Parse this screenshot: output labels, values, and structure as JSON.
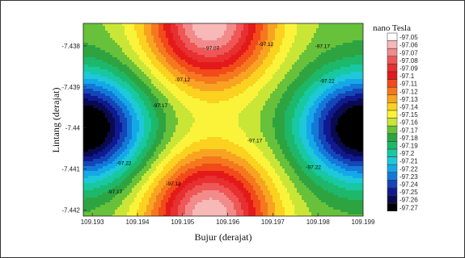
{
  "chart_data": {
    "type": "heatmap",
    "subtype": "filled-contour",
    "title": "",
    "xlabel": "Bujur (derajat)",
    "ylabel": "Lintang (derajat)",
    "xlim": [
      109.1928,
      109.199
    ],
    "ylim": [
      -7.44215,
      -7.43745
    ],
    "x_ticks": [
      "109.193",
      "109.194",
      "109.195",
      "109.196",
      "109.197",
      "109.198",
      "109.199"
    ],
    "x_tick_values": [
      109.193,
      109.194,
      109.195,
      109.196,
      109.197,
      109.198,
      109.199
    ],
    "y_ticks": [
      "-7.438",
      "-7.439",
      "-7.44",
      "-7.441",
      "-7.442"
    ],
    "y_tick_values": [
      -7.438,
      -7.439,
      -7.44,
      -7.441,
      -7.442
    ],
    "colorbar": {
      "title": "nano Tesla",
      "levels": [
        "-97.05",
        "-97.06",
        "-97.07",
        "-97.08",
        "-97.09",
        "-97.1",
        "-97.11",
        "-97.12",
        "-97.13",
        "-97.14",
        "-97.15",
        "-97.16",
        "-97.17",
        "-97.18",
        "-97.19",
        "-97.2",
        "-97.21",
        "-97.22",
        "-97.23",
        "-97.24",
        "-97.25",
        "-97.26",
        "-97.27"
      ],
      "colors": [
        "#ffffff",
        "#f7b8b8",
        "#f28a8a",
        "#ef5656",
        "#e83030",
        "#e41a1a",
        "#f24a1a",
        "#f5781e",
        "#f8a422",
        "#fbd21f",
        "#fbf33a",
        "#c9e637",
        "#67c13a",
        "#2ea441",
        "#1db86a",
        "#17c8a0",
        "#1ec8d8",
        "#14a8e8",
        "#1478d8",
        "#1446b8",
        "#101a90",
        "#0a0a50",
        "#000000"
      ]
    },
    "field_model": {
      "components": [
        {
          "role": "high",
          "x": 109.1956,
          "y": -7.43745,
          "sx": 0.00095,
          "sy": 0.00105,
          "amp": 0.112
        },
        {
          "role": "high",
          "x": 109.1956,
          "y": -7.44215,
          "sx": 0.00095,
          "sy": 0.00105,
          "amp": 0.112
        },
        {
          "role": "low",
          "x": 109.1928,
          "y": -7.44,
          "sx": 0.00095,
          "sy": 0.0009,
          "amp": -0.118
        },
        {
          "role": "low",
          "x": 109.199,
          "y": -7.44,
          "sx": 0.00095,
          "sy": 0.0009,
          "amp": -0.118
        }
      ],
      "base": -97.168
    },
    "contour_labels": [
      {
        "text": "-97.07",
        "x": 109.19565,
        "y": -7.4381
      },
      {
        "text": "-97.12",
        "x": 109.19685,
        "y": -7.438
      },
      {
        "text": "-97.12",
        "x": 109.195,
        "y": -7.43887
      },
      {
        "text": "-97.17",
        "x": 109.1981,
        "y": -7.43805
      },
      {
        "text": "-97.22",
        "x": 109.1982,
        "y": -7.4389
      },
      {
        "text": "-97.17",
        "x": 109.1945,
        "y": -7.4395
      },
      {
        "text": "-97.17",
        "x": 109.1966,
        "y": -7.44035
      },
      {
        "text": "-97.22",
        "x": 109.1937,
        "y": -7.4409
      },
      {
        "text": "-97.22",
        "x": 109.1979,
        "y": -7.441
      },
      {
        "text": "-97.12",
        "x": 109.1948,
        "y": -7.4414
      },
      {
        "text": "-97.17",
        "x": 109.1935,
        "y": -7.4416
      }
    ]
  }
}
